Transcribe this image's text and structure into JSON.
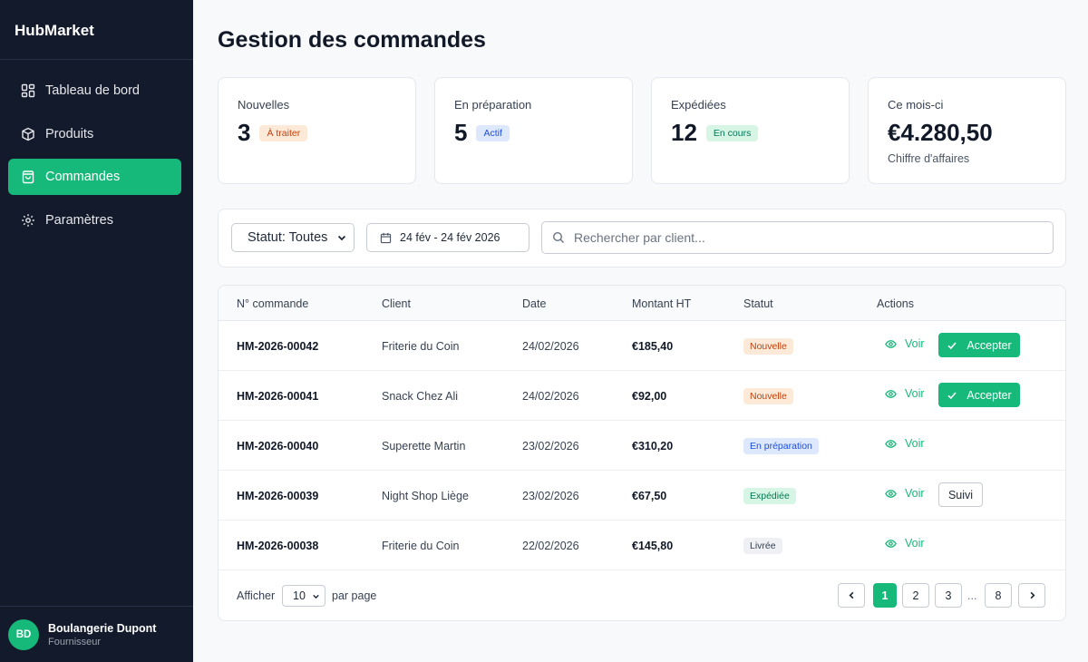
{
  "brand": "HubMarket",
  "sidebar": {
    "items": [
      {
        "label": "Tableau de bord",
        "icon": "dashboard-icon"
      },
      {
        "label": "Produits",
        "icon": "box-icon"
      },
      {
        "label": "Commandes",
        "icon": "bag-icon",
        "active": true
      },
      {
        "label": "Paramètres",
        "icon": "gear-icon"
      }
    ]
  },
  "user": {
    "initials": "BD",
    "name": "Boulangerie Dupont",
    "role": "Fournisseur"
  },
  "page_title": "Gestion des commandes",
  "stats": [
    {
      "label": "Nouvelles",
      "value": "3",
      "badge": "À traiter"
    },
    {
      "label": "En préparation",
      "value": "5",
      "badge": "Actif"
    },
    {
      "label": "Expédiées",
      "value": "12",
      "badge": "En cours"
    },
    {
      "label": "Ce mois-ci",
      "value": "€4.280,50",
      "sub": "Chiffre d'affaires"
    }
  ],
  "filters": {
    "status_select": "Statut: Toutes",
    "date_range": "24 fév - 24 fév 2026",
    "search_placeholder": "Rechercher par client..."
  },
  "table": {
    "headers": [
      "N° commande",
      "Client",
      "Date",
      "Montant HT",
      "Statut",
      "Actions"
    ],
    "rows": [
      {
        "id": "HM-2026-00042",
        "client": "Friterie du Coin",
        "date": "24/02/2026",
        "amount": "€185,40",
        "status": "Nouvelle"
      },
      {
        "id": "HM-2026-00041",
        "client": "Snack Chez Ali",
        "date": "24/02/2026",
        "amount": "€92,00",
        "status": "Nouvelle"
      },
      {
        "id": "HM-2026-00040",
        "client": "Superette Martin",
        "date": "23/02/2026",
        "amount": "€310,20",
        "status": "En préparation"
      },
      {
        "id": "HM-2026-00039",
        "client": "Night Shop Liège",
        "date": "23/02/2026",
        "amount": "€67,50",
        "status": "Expédiée"
      },
      {
        "id": "HM-2026-00038",
        "client": "Friterie du Coin",
        "date": "22/02/2026",
        "amount": "€145,80",
        "status": "Livrée"
      }
    ],
    "view_label": "Voir",
    "accept_label": "Accepter",
    "track_label": "Suivi"
  },
  "pagination": {
    "show_label": "Afficher",
    "per_page_value": "10",
    "per_page_suffix": "par page",
    "pages": [
      "1",
      "2",
      "3",
      "8"
    ],
    "ellipsis": "...",
    "current": "1"
  },
  "colors": {
    "accent": "#16b97a",
    "sidebar_bg": "#131a2b"
  }
}
